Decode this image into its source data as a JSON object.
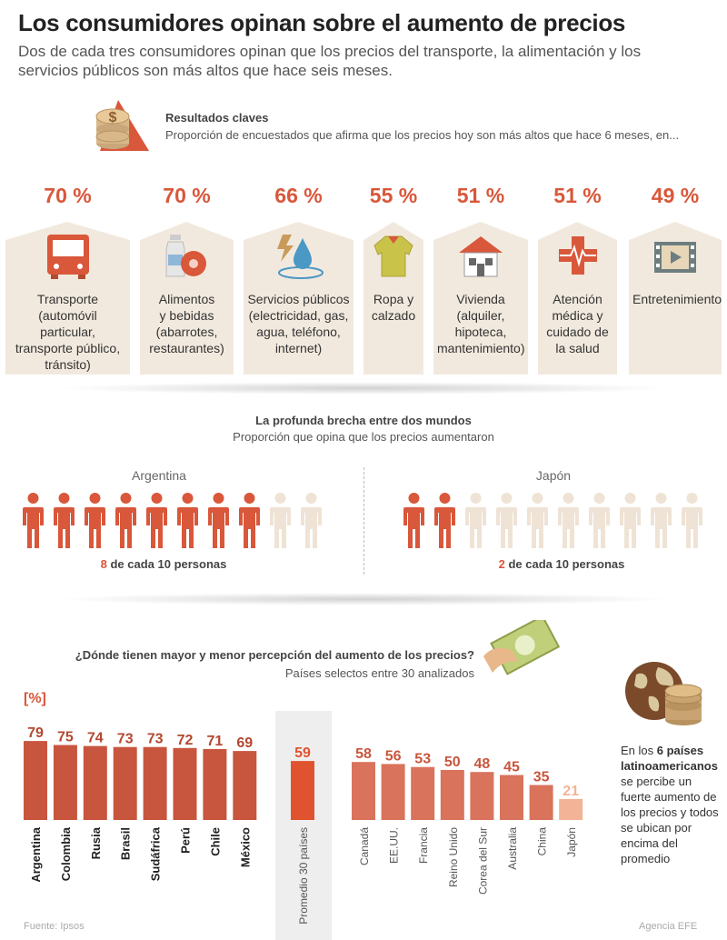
{
  "title": "Los consumidores opinan sobre el aumento de precios",
  "subtitle": "Dos de cada tres consumidores opinan que los precios del transporte, la alimentación y los servicios públicos son más altos que hace seis meses.",
  "key_results": {
    "title": "Resultados claves",
    "subtitle": "Proporción de encuestados que afirma que los precios hoy son más altos que hace 6 meses, en...",
    "items": [
      {
        "pct": "70 %",
        "icon": "bus-icon",
        "label": "Transporte\n(automóvil particular,\ntransporte público,\ntránsito)"
      },
      {
        "pct": "70 %",
        "icon": "food-icon",
        "label": "Alimentos\ny bebidas\n(abarrotes,\nrestaurantes)"
      },
      {
        "pct": "66 %",
        "icon": "utilities-icon",
        "label": "Servicios públicos\n(electricidad, gas,\nagua, teléfono,\ninternet)"
      },
      {
        "pct": "55 %",
        "icon": "shirt-icon",
        "label": "Ropa y\ncalzado"
      },
      {
        "pct": "51 %",
        "icon": "house-icon",
        "label": "Vivienda\n(alquiler,\nhipoteca,\nmantenimiento)"
      },
      {
        "pct": "51 %",
        "icon": "medical-cross-icon",
        "label": "Atención\nmédica y\ncuidado de\nla salud"
      },
      {
        "pct": "49 %",
        "icon": "film-icon",
        "label": "Entretenimiento"
      }
    ]
  },
  "gap": {
    "title": "La profunda brecha entre dos mundos",
    "subtitle": "Proporción que opina que los precios aumentaron",
    "left": {
      "country": "Argentina",
      "filled": 8,
      "total": 10,
      "num": "8",
      "text": " de cada 10 personas"
    },
    "right": {
      "country": "Japón",
      "filled": 2,
      "total": 10,
      "num": "2",
      "text": " de cada 10 personas"
    }
  },
  "perception": {
    "title": "¿Dónde tienen mayor y menor percepción del aumento de los precios?",
    "subtitle": "Países selectos entre 30 analizados",
    "unit": "[%]",
    "note_pre": "En los ",
    "note_bold": "6 países latinoamericanos",
    "note_post": " se percibe un fuerte aumento de los precios y todos se ubican por encima del promedio"
  },
  "chart_data": {
    "type": "bar",
    "unit": "[%]",
    "categories": [
      "Argentina",
      "Colombia",
      "Rusia",
      "Brasil",
      "Sudáfrica",
      "Perú",
      "Chile",
      "México",
      "Promedio 30 países",
      "Canadá",
      "EE.UU.",
      "Francia",
      "Reino Unido",
      "Corea del Sur",
      "Australia",
      "China",
      "Japón"
    ],
    "values": [
      79,
      75,
      74,
      73,
      73,
      72,
      71,
      69,
      59,
      58,
      56,
      53,
      50,
      48,
      45,
      35,
      21
    ],
    "colors": {
      "latam": "#c8553d",
      "average": "#e0532f",
      "others": "#d9735c",
      "lowest": "#f2b396"
    }
  },
  "colors": {
    "accent": "#d9573a",
    "card_bg": "#f2e9de",
    "person_off": "#efe3d5"
  },
  "footer": {
    "source": "Fuente: Ipsos",
    "agency": "Agencia EFE"
  }
}
